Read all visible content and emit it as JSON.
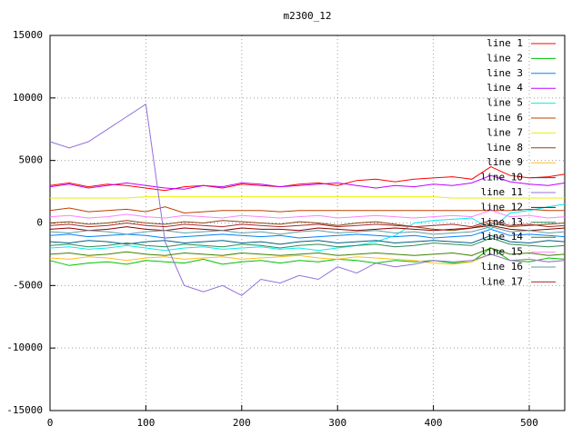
{
  "chart_data": {
    "type": "line",
    "title": "m2300_12",
    "xlim": [
      0,
      537
    ],
    "ylim": [
      -15000,
      15000
    ],
    "xticks": [
      0,
      100,
      200,
      300,
      400,
      500
    ],
    "yticks": [
      -15000,
      -10000,
      -5000,
      0,
      5000,
      10000,
      15000
    ],
    "grid": true,
    "legend": "top-right",
    "x": [
      0,
      20,
      40,
      60,
      80,
      100,
      120,
      140,
      160,
      180,
      200,
      220,
      240,
      260,
      280,
      300,
      320,
      340,
      360,
      380,
      400,
      420,
      440,
      460,
      480,
      500,
      520,
      537
    ],
    "series": [
      {
        "name": "line 1",
        "color": "#ff0000",
        "values": [
          3000,
          3200,
          2900,
          3100,
          3000,
          2800,
          2600,
          2900,
          3000,
          2800,
          3100,
          3000,
          2900,
          3100,
          3200,
          3000,
          3400,
          3500,
          3300,
          3500,
          3600,
          3700,
          3500,
          4500,
          3800,
          3600,
          3700,
          3900
        ]
      },
      {
        "name": "line 2",
        "color": "#00c000",
        "values": [
          -3000,
          -3400,
          -3200,
          -3100,
          -3300,
          -3000,
          -3100,
          -3200,
          -2900,
          -3300,
          -3100,
          -3000,
          -3200,
          -3000,
          -3100,
          -2900,
          -3000,
          -3200,
          -3000,
          -3100,
          -3000,
          -3200,
          -3100,
          -2000,
          -3000,
          -3100,
          -2800,
          -2900
        ]
      },
      {
        "name": "line 3",
        "color": "#0080ff",
        "values": [
          -1000,
          -900,
          -1100,
          -1000,
          -900,
          -1000,
          -1200,
          -1100,
          -1000,
          -900,
          -1000,
          -1100,
          -1000,
          -1200,
          -1100,
          -1000,
          -900,
          -1000,
          -1100,
          -1000,
          -1200,
          -1100,
          -1000,
          -500,
          -1000,
          -900,
          -1000,
          -1100
        ]
      },
      {
        "name": "line 4",
        "color": "#c000ff",
        "values": [
          2900,
          3100,
          2800,
          3000,
          3200,
          3000,
          2800,
          2700,
          3000,
          2900,
          3200,
          3100,
          2900,
          3000,
          3100,
          3200,
          3000,
          2800,
          3000,
          2900,
          3100,
          3000,
          3200,
          3800,
          3300,
          3100,
          3000,
          3200
        ]
      },
      {
        "name": "line 5",
        "color": "#00eeee",
        "values": [
          -2000,
          -1900,
          -2100,
          -2000,
          -1800,
          -2000,
          -2200,
          -2000,
          -1900,
          -2100,
          -2000,
          -1900,
          -2100,
          -2000,
          -2200,
          -2000,
          -1800,
          -1500,
          -1000,
          0,
          200,
          300,
          400,
          -500,
          800,
          1000,
          1300,
          1500
        ]
      },
      {
        "name": "line 6",
        "color": "#c04000",
        "values": [
          1000,
          1200,
          900,
          1000,
          1100,
          900,
          1300,
          800,
          900,
          1000,
          1000,
          1000,
          900,
          1000,
          1000,
          1000,
          1000,
          1000,
          1000,
          1000,
          1000,
          1000,
          1000,
          1000,
          1000,
          1100,
          1000,
          1000
        ]
      },
      {
        "name": "line 7",
        "color": "#eeee00",
        "values": [
          2000,
          2000,
          2000,
          2000,
          2000,
          2100,
          2100,
          2100,
          2100,
          2100,
          2100,
          2100,
          2100,
          2100,
          2100,
          2100,
          2100,
          2100,
          2100,
          2100,
          2100,
          2000,
          2000,
          2000,
          2000,
          2000,
          2000,
          2000
        ]
      },
      {
        "name": "line 8",
        "color": "#8b4513",
        "values": [
          0,
          100,
          -100,
          0,
          200,
          0,
          -100,
          100,
          0,
          200,
          100,
          0,
          -100,
          100,
          0,
          -200,
          0,
          100,
          -100,
          -300,
          -500,
          -600,
          -400,
          0,
          -300,
          -200,
          -100,
          0
        ]
      },
      {
        "name": "line 9",
        "color": "#ffc020",
        "values": [
          -2800,
          -2900,
          -2700,
          -2800,
          -3000,
          -2800,
          -2700,
          -2900,
          -2800,
          -2700,
          -2900,
          -2800,
          -2700,
          -2600,
          -2800,
          -2900,
          -2700,
          -2800,
          -2900,
          -3000,
          -3200,
          -3300,
          -3100,
          -2500,
          -3000,
          -2900,
          -3100,
          -3000
        ]
      },
      {
        "name": "line 10",
        "color": "#006080",
        "values": [
          -1500,
          -1600,
          -1400,
          -1500,
          -1700,
          -1500,
          -1400,
          -1600,
          -1500,
          -1400,
          -1600,
          -1500,
          -1700,
          -1500,
          -1400,
          -1600,
          -1500,
          -1400,
          -1600,
          -1500,
          -1400,
          -1500,
          -1600,
          -1000,
          -1500,
          -1600,
          -1400,
          -1500
        ]
      },
      {
        "name": "line 11",
        "color": "#9370db",
        "values": [
          6500,
          6000,
          6500,
          7500,
          8500,
          9500,
          -1500,
          -5000,
          -5500,
          -5000,
          -5800,
          -4500,
          -4800,
          -4200,
          -4500,
          -3500,
          -4000,
          -3200,
          -3500,
          -3300,
          -3000,
          -3100,
          -3000,
          -2500,
          -3000,
          -2900,
          -3100,
          -3000
        ]
      },
      {
        "name": "line 12",
        "color": "#8b0000",
        "values": [
          -500,
          -400,
          -600,
          -500,
          -300,
          -500,
          -600,
          -400,
          -500,
          -600,
          -400,
          -500,
          -500,
          -600,
          -400,
          -500,
          -600,
          -500,
          -400,
          -500,
          -600,
          -500,
          -400,
          -200,
          -500,
          -600,
          -500,
          -400
        ]
      },
      {
        "name": "line 13",
        "color": "#2e8b57",
        "values": [
          -1800,
          -1700,
          -1900,
          -1800,
          -1600,
          -1800,
          -1900,
          -1700,
          -1800,
          -1900,
          -1700,
          -1800,
          -2000,
          -1800,
          -1700,
          -1900,
          -1800,
          -1700,
          -1900,
          -1800,
          -1600,
          -1700,
          -1800,
          -1200,
          -1700,
          -1800,
          -1900,
          -1800
        ]
      },
      {
        "name": "line 14",
        "color": "#408000",
        "values": [
          -2500,
          -2400,
          -2600,
          -2500,
          -2300,
          -2500,
          -2600,
          -2400,
          -2500,
          -2600,
          -2400,
          -2500,
          -2600,
          -2500,
          -2400,
          -2600,
          -2500,
          -2400,
          -2500,
          -2600,
          -2500,
          -2400,
          -2600,
          -2000,
          -2500,
          -2400,
          -2600,
          -2500
        ]
      },
      {
        "name": "line 15",
        "color": "#ff80ff",
        "values": [
          500,
          600,
          400,
          500,
          700,
          500,
          400,
          600,
          500,
          400,
          600,
          500,
          400,
          500,
          600,
          400,
          500,
          600,
          500,
          400,
          500,
          600,
          500,
          1000,
          500,
          600,
          400,
          500
        ]
      },
      {
        "name": "line 16",
        "color": "#5f9ea0",
        "values": [
          -700,
          -800,
          -600,
          -700,
          -900,
          -700,
          -600,
          -800,
          -700,
          -600,
          -800,
          -700,
          -900,
          -700,
          -600,
          -800,
          -700,
          -600,
          -800,
          -700,
          -900,
          -800,
          -700,
          -300,
          -700,
          -600,
          -800,
          -700
        ]
      },
      {
        "name": "line 17",
        "color": "#a52a2a",
        "values": [
          -200,
          -100,
          -300,
          -200,
          0,
          -200,
          -300,
          -100,
          -200,
          -300,
          -100,
          -200,
          -300,
          -200,
          -100,
          -300,
          -200,
          -100,
          -200,
          -300,
          -200,
          -100,
          -300,
          200,
          -200,
          -100,
          -300,
          -200
        ]
      }
    ]
  }
}
